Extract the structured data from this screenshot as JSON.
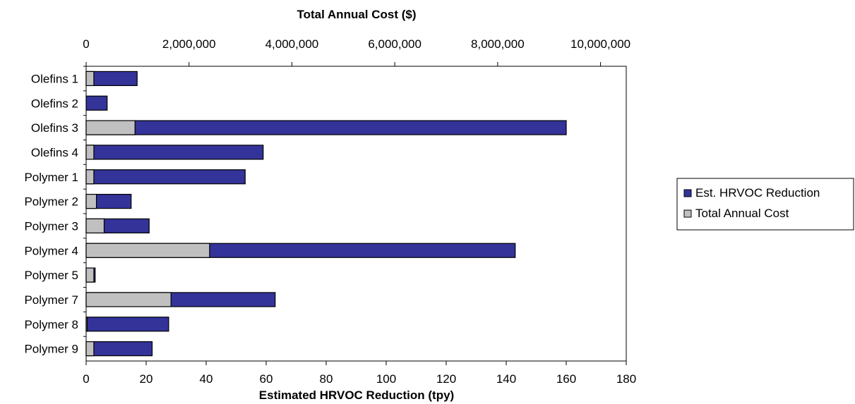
{
  "chart_data": {
    "type": "bar",
    "orientation": "horizontal",
    "categories": [
      "Olefins 1",
      "Olefins 2",
      "Olefins 3",
      "Olefins 4",
      "Polymer 1",
      "Polymer 2",
      "Polymer 3",
      "Polymer 4",
      "Polymer 5",
      "Polymer 7",
      "Polymer 8",
      "Polymer 9"
    ],
    "series": [
      {
        "name": "Est. HRVOC Reduction",
        "axis": "bottom",
        "color": "#333399",
        "values": [
          17,
          7,
          160,
          59,
          53,
          15,
          21,
          143,
          3,
          63,
          27.5,
          22
        ]
      },
      {
        "name": "Total Annual Cost",
        "axis": "top",
        "color": "#c0c0c0",
        "values": [
          150000,
          0,
          950000,
          150000,
          150000,
          200000,
          350000,
          2400000,
          150000,
          1650000,
          20000,
          150000
        ]
      }
    ],
    "xlabel": "Estimated HRVOC Reduction (tpy)",
    "x2label": "Total Annual Cost ($)",
    "xlim": [
      0,
      180
    ],
    "x2lim": [
      0,
      10500000
    ],
    "xticks": [
      0,
      20,
      40,
      60,
      80,
      100,
      120,
      140,
      160,
      180
    ],
    "xtick_labels": [
      "0",
      "20",
      "40",
      "60",
      "80",
      "100",
      "120",
      "140",
      "160",
      "180"
    ],
    "x2ticks": [
      0,
      2000000,
      4000000,
      6000000,
      8000000,
      10000000
    ],
    "x2tick_labels": [
      "0",
      "2,000,000",
      "4,000,000",
      "6,000,000",
      "8,000,000",
      "10,000,000"
    ],
    "grid": false,
    "legend_position": "right",
    "legend": [
      "Est. HRVOC Reduction",
      "Total Annual Cost"
    ]
  }
}
